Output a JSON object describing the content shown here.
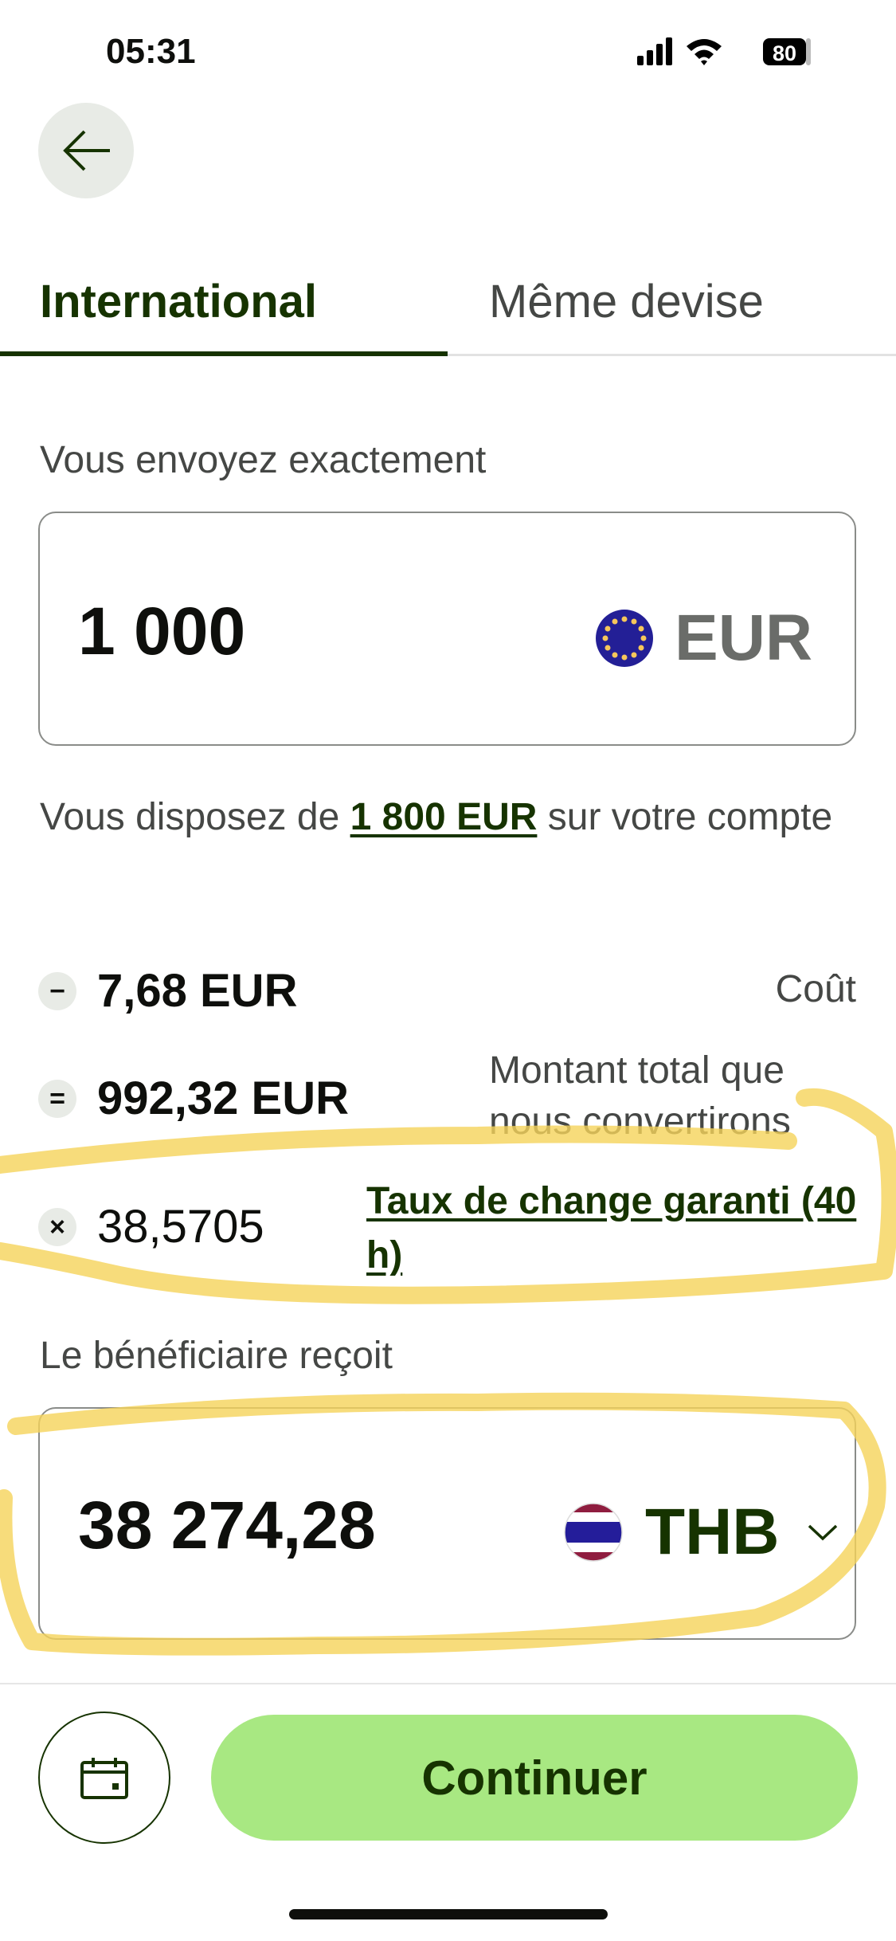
{
  "status_bar": {
    "time": "05:31",
    "battery": "80"
  },
  "tabs": [
    {
      "label": "International",
      "active": true
    },
    {
      "label": "Même devise",
      "active": false
    }
  ],
  "send": {
    "label": "Vous envoyez exactement",
    "amount": "1 000",
    "currency": "EUR",
    "balance_prefix": "Vous disposez de ",
    "balance_amount": "1 800 EUR",
    "balance_suffix": " sur votre compte"
  },
  "breakdown": [
    {
      "symbol": "−",
      "value": "7,68 EUR",
      "label": "Coût"
    },
    {
      "symbol": "=",
      "value": "992,32 EUR",
      "label": "Montant total que nous convertirons"
    },
    {
      "symbol": "×",
      "value": "38,5705",
      "label": "Taux de change garanti (40 h)"
    }
  ],
  "receive": {
    "label": "Le bénéficiaire reçoit",
    "amount": "38 274,28",
    "currency": "THB"
  },
  "footer": {
    "continue_label": "Continuer"
  },
  "colors": {
    "accent": "#a8e882",
    "brand_dark": "#163300",
    "highlight": "#f5d35a"
  }
}
